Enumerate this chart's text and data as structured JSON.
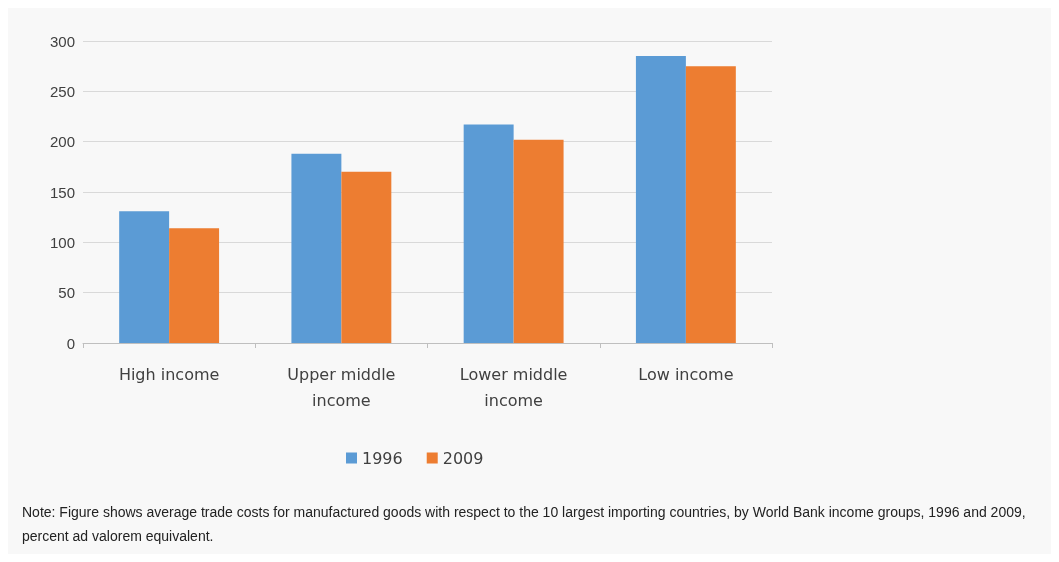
{
  "chart_data": {
    "type": "bar",
    "categories": [
      "High income",
      "Upper middle\nincome",
      "Lower middle\nincome",
      "Low income"
    ],
    "series": [
      {
        "name": "1996",
        "color": "#5b9bd5",
        "values": [
          131,
          188,
          217,
          285
        ]
      },
      {
        "name": "2009",
        "color": "#ed7d31",
        "values": [
          114,
          170,
          202,
          275
        ]
      }
    ],
    "ylim": [
      0,
      300
    ],
    "yticks": [
      0,
      50,
      100,
      150,
      200,
      250,
      300
    ],
    "grid": "y",
    "legend": "bottom",
    "annotations": [
      "Note: Figure shows average trade costs for manufactured goods with respect to the 10 largest importing countries, by World Bank income groups, 1996 and 2009, percent ad valorem equivalent."
    ]
  }
}
